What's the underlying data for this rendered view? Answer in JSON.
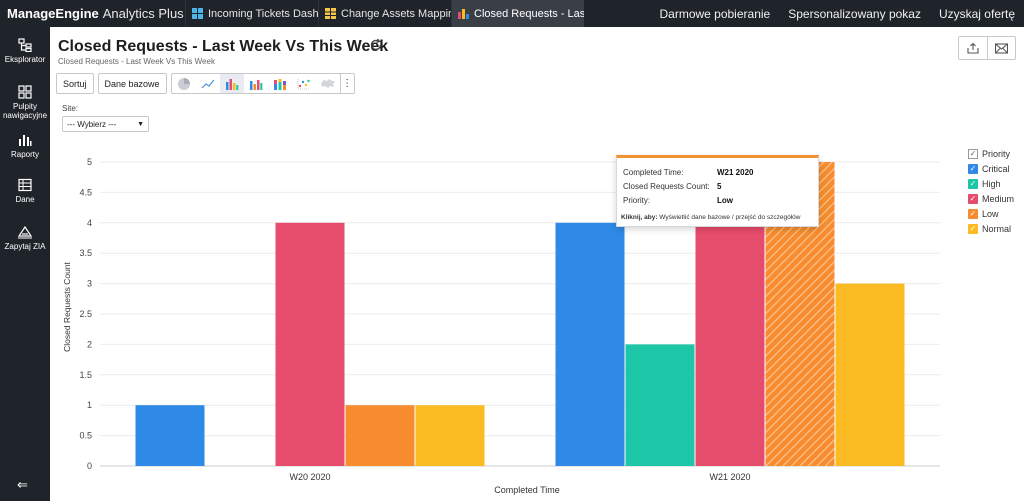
{
  "app": {
    "brand_main": "ManageEngine",
    "brand_sub": "Analytics Plus"
  },
  "tabs": [
    {
      "label": "Incoming Tickets Dash...",
      "icon": "dashboard-icon",
      "active": false
    },
    {
      "label": "Change Assets Mapping",
      "icon": "table-icon",
      "active": false
    },
    {
      "label": "Closed Requests - Last ...",
      "icon": "chart-icon",
      "active": true,
      "close": "✕"
    }
  ],
  "toplinks": [
    "Darmowe pobieranie",
    "Spersonalizowany pokaz",
    "Uzyskaj ofertę"
  ],
  "sidebar": [
    {
      "label": "Eksplorator",
      "icon": "explorer-icon"
    },
    {
      "label": "Pulpity nawigacyjne",
      "icon": "dashboards-icon"
    },
    {
      "label": "Raporty",
      "icon": "reports-icon"
    },
    {
      "label": "Dane",
      "icon": "data-icon"
    },
    {
      "label": "Zapytaj ZIA",
      "icon": "zia-icon"
    }
  ],
  "sidebar_collapse": "⇐",
  "report": {
    "title": "Closed Requests - Last Week Vs This Week",
    "subtitle": "Closed Requests - Last Week Vs This Week"
  },
  "toolbar": {
    "sort_label": "Sortuj",
    "data_label": "Dane bazowe",
    "more_label": "⋮"
  },
  "filter": {
    "label": "Site:",
    "value": "--- Wybierz ---"
  },
  "colors": {
    "Critical": "#2e8ae6",
    "High": "#1cc6a6",
    "Medium": "#e64c6c",
    "Low": "#f68c2e",
    "Normal": "#fbbb23"
  },
  "chart_data": {
    "type": "bar",
    "categories": [
      "W20 2020",
      "W21 2020"
    ],
    "series": [
      {
        "name": "Critical",
        "values": [
          1,
          4
        ]
      },
      {
        "name": "High",
        "values": [
          0,
          2
        ]
      },
      {
        "name": "Medium",
        "values": [
          4,
          4
        ]
      },
      {
        "name": "Low",
        "values": [
          1,
          5
        ]
      },
      {
        "name": "Normal",
        "values": [
          1,
          3
        ]
      }
    ],
    "xlabel": "Completed Time",
    "ylabel": "Closed Requests Count",
    "ylim": [
      0,
      5
    ],
    "yticks": [
      "0",
      "0.5",
      "1",
      "1.5",
      "2",
      "2.5",
      "3",
      "3.5",
      "4",
      "4.5",
      "5"
    ],
    "legend_title": "Priority",
    "legend_position": "right",
    "grid": true
  },
  "tooltip": {
    "rows": [
      {
        "key": "Completed Time:",
        "value": "W21 2020"
      },
      {
        "key": "Closed Requests Count:",
        "value": "5"
      },
      {
        "key": "Priority:",
        "value": "Low"
      }
    ],
    "foot_bold": "Kliknij, aby:",
    "foot_text": "Wyświetlić dane bazowe / przejść do szczegółów"
  }
}
